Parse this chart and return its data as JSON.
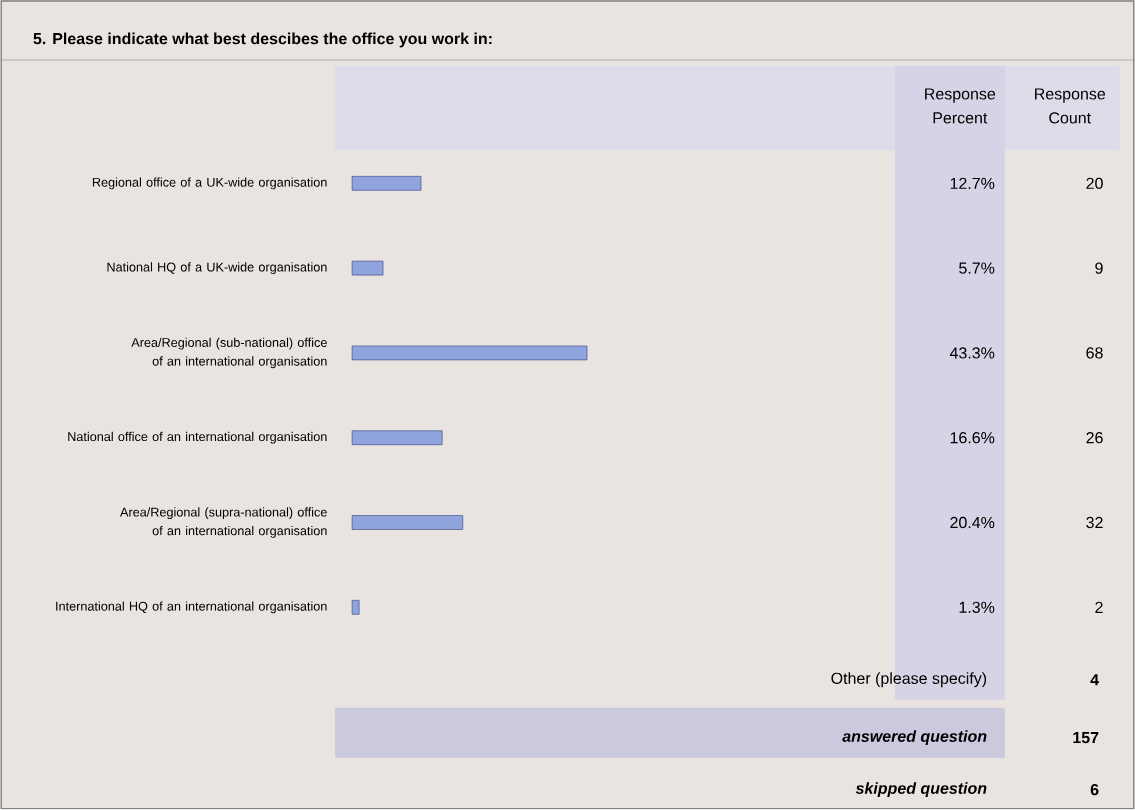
{
  "chart_data": {
    "type": "bar",
    "orientation": "horizontal",
    "title": "5. Please indicate what best descibes the office you work in:",
    "categories": [
      "Regional office of a UK-wide organisation",
      "National HQ of a UK-wide organisation",
      "Area/Regional (sub-national) office of an international organisation",
      "National office of an international organisation",
      "Area/Regional (supra-national) office of an international organisation",
      "International HQ of an international organisation"
    ],
    "values": [
      12.7,
      5.7,
      43.3,
      16.6,
      20.4,
      1.3
    ],
    "value_labels": [
      "12.7%",
      "5.7%",
      "43.3%",
      "16.6%",
      "20.4%",
      "1.3%"
    ],
    "color": "#8fa3dc",
    "tick_labels": false,
    "annotations": [
      "Response Percent",
      "Response Count",
      "20",
      "9",
      "68",
      "26",
      "32",
      "2",
      "Other (please specify)",
      "4",
      "answered question",
      "157",
      "skipped question",
      "6"
    ]
  }
}
